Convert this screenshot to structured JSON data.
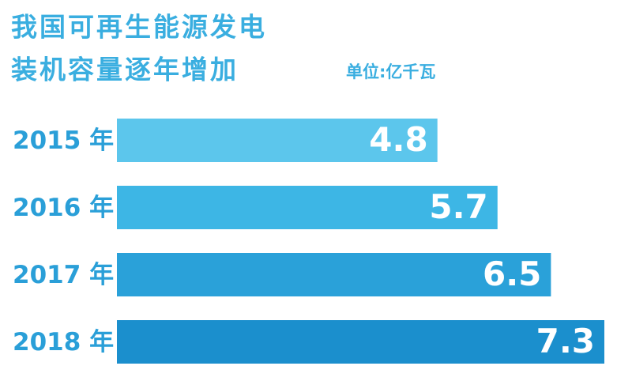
{
  "chart_data": {
    "type": "bar",
    "orientation": "horizontal",
    "title": "我国可再生能源发电",
    "subtitle": "装机容量逐年增加",
    "unit": "单位:亿千瓦",
    "categories": [
      "2015 年",
      "2016 年",
      "2017 年",
      "2018 年"
    ],
    "values": [
      4.8,
      5.7,
      6.5,
      7.3
    ],
    "colors": [
      "#5cc6ec",
      "#3db6e5",
      "#2aa1d9",
      "#1b8fcd"
    ]
  }
}
